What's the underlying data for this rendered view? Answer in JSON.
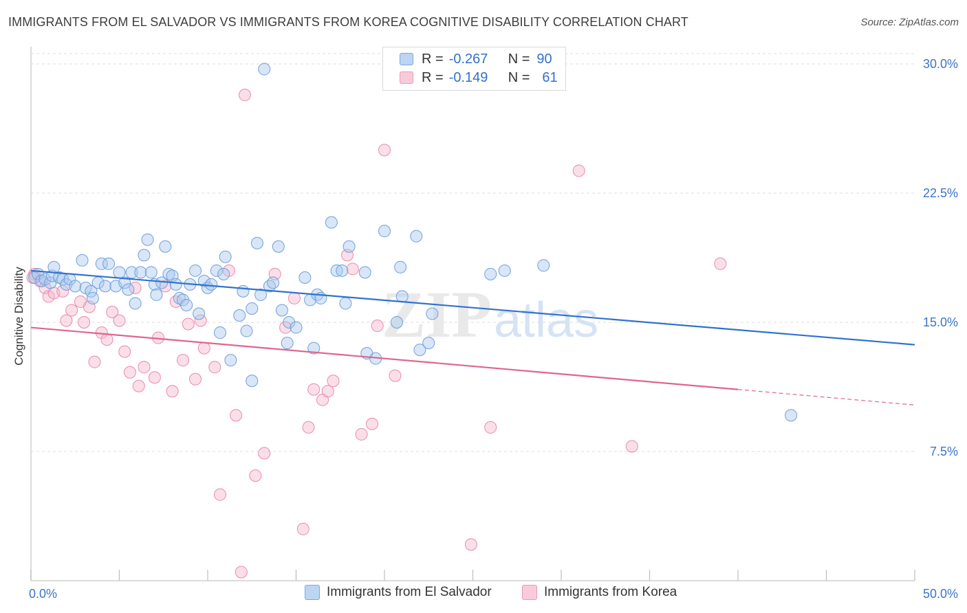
{
  "header": {
    "title": "IMMIGRANTS FROM EL SALVADOR VS IMMIGRANTS FROM KOREA COGNITIVE DISABILITY CORRELATION CHART",
    "source": "Source: ZipAtlas.com"
  },
  "legend": {
    "row1": {
      "r_label": "R =",
      "r_value": "-0.267",
      "n_label": "N =",
      "n_value": "90"
    },
    "row2": {
      "r_label": "R =",
      "r_value": "-0.149",
      "n_label": "N =",
      "n_value": "61"
    }
  },
  "colors": {
    "blue_fill": "#a9c8f0",
    "blue_stroke": "#6f9fd9",
    "blue_line": "#2f72cf",
    "pink_fill": "#f6b9cc",
    "pink_stroke": "#e98aa8",
    "pink_line": "#e0648f",
    "axis_label": "#3a74c8",
    "grid": "#dcdcdc"
  },
  "watermark": {
    "part1": "ZIP",
    "part2": "atlas"
  },
  "chart_data": {
    "type": "scatter",
    "title": "IMMIGRANTS FROM EL SALVADOR VS IMMIGRANTS FROM KOREA COGNITIVE DISABILITY CORRELATION CHART",
    "ylabel": "Cognitive Disability",
    "xlabel": "",
    "x_tick_labels": [
      "0.0%",
      "50.0%"
    ],
    "y_tick_labels": [
      "7.5%",
      "15.0%",
      "22.5%",
      "30.0%"
    ],
    "y_ticks": [
      7.5,
      15.0,
      22.5,
      30.0
    ],
    "xlim": [
      0,
      50
    ],
    "ylim": [
      0,
      30.6
    ],
    "grid": true,
    "legend_position": "top-center",
    "series": [
      {
        "name": "Immigrants from El Salvador",
        "color": "#6f9fd9",
        "r": -0.267,
        "n": 90,
        "trend": {
          "x": [
            0,
            50
          ],
          "y": [
            18.0,
            13.7
          ]
        },
        "points": [
          [
            0.2,
            17.6
          ],
          [
            0.4,
            17.8
          ],
          [
            0.6,
            17.4
          ],
          [
            0.8,
            17.5
          ],
          [
            1.1,
            17.3
          ],
          [
            1.2,
            17.7
          ],
          [
            1.3,
            18.2
          ],
          [
            1.6,
            17.6
          ],
          [
            1.8,
            17.5
          ],
          [
            2.0,
            17.2
          ],
          [
            2.2,
            17.5
          ],
          [
            2.5,
            17.1
          ],
          [
            2.9,
            18.6
          ],
          [
            3.1,
            17.0
          ],
          [
            3.4,
            16.8
          ],
          [
            3.5,
            16.4
          ],
          [
            3.8,
            17.3
          ],
          [
            4.0,
            18.4
          ],
          [
            4.2,
            17.1
          ],
          [
            4.4,
            18.4
          ],
          [
            4.8,
            17.1
          ],
          [
            5.0,
            17.9
          ],
          [
            5.3,
            17.3
          ],
          [
            5.5,
            16.9
          ],
          [
            5.7,
            17.9
          ],
          [
            5.9,
            16.1
          ],
          [
            6.2,
            17.9
          ],
          [
            6.4,
            18.9
          ],
          [
            6.6,
            19.8
          ],
          [
            6.8,
            17.9
          ],
          [
            7.0,
            17.2
          ],
          [
            7.1,
            16.6
          ],
          [
            7.4,
            17.3
          ],
          [
            7.6,
            19.4
          ],
          [
            7.8,
            17.8
          ],
          [
            8.0,
            17.7
          ],
          [
            8.2,
            17.2
          ],
          [
            8.4,
            16.4
          ],
          [
            8.6,
            16.3
          ],
          [
            8.8,
            16.0
          ],
          [
            9.0,
            17.2
          ],
          [
            9.3,
            18.0
          ],
          [
            9.5,
            15.5
          ],
          [
            9.8,
            17.4
          ],
          [
            10.0,
            17.0
          ],
          [
            10.2,
            17.2
          ],
          [
            10.5,
            18.0
          ],
          [
            10.7,
            14.4
          ],
          [
            10.9,
            17.8
          ],
          [
            11.0,
            18.8
          ],
          [
            11.3,
            12.8
          ],
          [
            11.8,
            15.4
          ],
          [
            12.0,
            16.8
          ],
          [
            12.2,
            14.5
          ],
          [
            12.5,
            11.6
          ],
          [
            12.5,
            15.8
          ],
          [
            12.8,
            19.6
          ],
          [
            13.0,
            16.6
          ],
          [
            13.2,
            29.7
          ],
          [
            13.5,
            17.1
          ],
          [
            13.7,
            17.3
          ],
          [
            14.0,
            19.4
          ],
          [
            14.2,
            15.7
          ],
          [
            14.5,
            13.8
          ],
          [
            14.6,
            15.0
          ],
          [
            15.0,
            14.7
          ],
          [
            15.5,
            17.6
          ],
          [
            15.8,
            16.3
          ],
          [
            16.0,
            13.5
          ],
          [
            16.2,
            16.6
          ],
          [
            16.4,
            16.4
          ],
          [
            17.0,
            20.8
          ],
          [
            17.3,
            18.0
          ],
          [
            17.6,
            18.0
          ],
          [
            17.8,
            16.1
          ],
          [
            18.0,
            19.4
          ],
          [
            18.9,
            17.9
          ],
          [
            19.0,
            13.2
          ],
          [
            19.5,
            12.9
          ],
          [
            20.0,
            20.3
          ],
          [
            20.7,
            15.0
          ],
          [
            20.9,
            18.2
          ],
          [
            21.0,
            16.5
          ],
          [
            21.8,
            20.0
          ],
          [
            22.0,
            13.4
          ],
          [
            22.5,
            13.8
          ],
          [
            22.7,
            15.5
          ],
          [
            26.0,
            17.8
          ],
          [
            26.8,
            18.0
          ],
          [
            29.0,
            18.3
          ],
          [
            43.0,
            9.6
          ]
        ]
      },
      {
        "name": "Immigrants from Korea",
        "color": "#e98aa8",
        "r": -0.149,
        "n": 61,
        "trend": {
          "x": [
            0,
            40
          ],
          "y": [
            14.7,
            11.1
          ]
        },
        "trend_dashed": {
          "x": [
            40,
            50
          ],
          "y": [
            11.1,
            10.2
          ]
        },
        "points": [
          [
            0.2,
            17.8
          ],
          [
            0.5,
            17.4
          ],
          [
            0.8,
            17.0
          ],
          [
            1.0,
            16.5
          ],
          [
            1.3,
            16.7
          ],
          [
            1.8,
            16.8
          ],
          [
            2.0,
            15.1
          ],
          [
            2.3,
            15.7
          ],
          [
            2.8,
            16.2
          ],
          [
            3.0,
            15.0
          ],
          [
            3.3,
            15.9
          ],
          [
            3.6,
            12.7
          ],
          [
            4.0,
            14.4
          ],
          [
            4.3,
            14.0
          ],
          [
            4.6,
            15.6
          ],
          [
            5.0,
            15.1
          ],
          [
            5.3,
            13.3
          ],
          [
            5.6,
            12.1
          ],
          [
            5.9,
            17.0
          ],
          [
            6.1,
            11.3
          ],
          [
            6.4,
            12.4
          ],
          [
            7.0,
            11.8
          ],
          [
            7.2,
            14.1
          ],
          [
            7.6,
            17.1
          ],
          [
            8.0,
            11.0
          ],
          [
            8.2,
            16.2
          ],
          [
            8.6,
            12.8
          ],
          [
            8.9,
            14.9
          ],
          [
            9.3,
            11.7
          ],
          [
            9.6,
            15.1
          ],
          [
            9.8,
            13.5
          ],
          [
            10.4,
            12.4
          ],
          [
            10.7,
            5.0
          ],
          [
            11.2,
            18.0
          ],
          [
            11.6,
            9.6
          ],
          [
            11.9,
            0.5
          ],
          [
            12.1,
            28.2
          ],
          [
            12.7,
            6.1
          ],
          [
            13.2,
            7.4
          ],
          [
            13.8,
            17.8
          ],
          [
            14.4,
            14.7
          ],
          [
            14.9,
            16.4
          ],
          [
            15.4,
            3.0
          ],
          [
            15.7,
            8.9
          ],
          [
            16.0,
            11.1
          ],
          [
            16.5,
            10.5
          ],
          [
            16.8,
            11.0
          ],
          [
            17.1,
            11.6
          ],
          [
            17.9,
            18.9
          ],
          [
            18.2,
            18.1
          ],
          [
            18.7,
            8.5
          ],
          [
            19.3,
            9.1
          ],
          [
            19.6,
            14.8
          ],
          [
            20.0,
            25.0
          ],
          [
            20.6,
            11.9
          ],
          [
            24.9,
            2.1
          ],
          [
            26.0,
            8.9
          ],
          [
            31.0,
            23.8
          ],
          [
            34.0,
            7.8
          ],
          [
            39.0,
            18.4
          ],
          [
            0.1,
            17.6
          ]
        ]
      }
    ]
  }
}
